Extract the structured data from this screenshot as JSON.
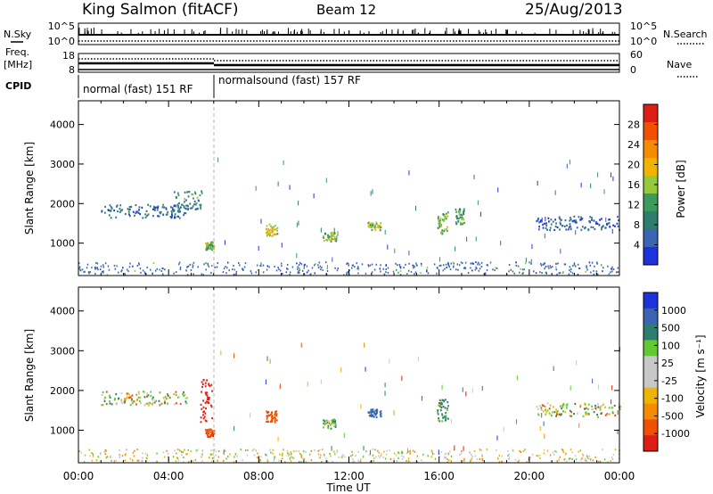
{
  "header": {
    "station": "King Salmon (fitACF)",
    "beam": "Beam 12",
    "date": "25/Aug/2013"
  },
  "sky_search": {
    "left_label": "N.Sky",
    "right_label": "N.Search",
    "left_ticks": [
      "10^5",
      "10^0"
    ],
    "right_ticks": [
      "10^5",
      "10^0"
    ]
  },
  "freq_nave": {
    "left_label_line1": "Freq.",
    "left_label_line2": "[MHz]",
    "right_label": "Nave",
    "left_ticks": [
      "18",
      "8"
    ],
    "right_ticks": [
      "60",
      "0"
    ]
  },
  "cpid": {
    "label": "CPID",
    "segments": [
      {
        "text": "normal (fast) 151 RF",
        "start_hour": 0
      },
      {
        "text": "normalsound (fast) 157 RF",
        "start_hour": 6
      }
    ]
  },
  "x_axis": {
    "label": "Time UT",
    "ticks": [
      "00:00",
      "04:00",
      "08:00",
      "12:00",
      "16:00",
      "20:00",
      "00:00"
    ],
    "range_hours": [
      0,
      24
    ]
  },
  "colors": {
    "power_scale": [
      "#1e32dc",
      "#3c64b4",
      "#2e7d6e",
      "#3c9a5a",
      "#96c83c",
      "#f0b400",
      "#f58c00",
      "#f05000",
      "#dc1e14"
    ],
    "velocity_scale": [
      "#dc1e14",
      "#f05000",
      "#f58c00",
      "#f0b400",
      "#c8c8c8",
      "#c8c8c8",
      "#64c832",
      "#2e7d6e",
      "#3c64b4",
      "#1e32dc"
    ]
  },
  "chart_data": [
    {
      "type": "heatmap",
      "title": "",
      "xlabel": "",
      "ylabel": "Slant Range [km]",
      "y_ticks": [
        "1000",
        "2000",
        "3000",
        "4000"
      ],
      "ylim": [
        180,
        4600
      ],
      "colorbar_label": "Power [dB]",
      "colorbar_ticks": [
        "4",
        "8",
        "12",
        "16",
        "20",
        "24",
        "28"
      ],
      "colorbar_range": [
        0,
        32
      ],
      "echo_regions": [
        {
          "t0": 1.0,
          "t1": 4.8,
          "r0": 1650,
          "r1": 2000,
          "level": 6
        },
        {
          "t0": 4.2,
          "t1": 5.5,
          "r0": 1850,
          "r1": 2350,
          "level": 10
        },
        {
          "t0": 5.6,
          "t1": 6.0,
          "r0": 850,
          "r1": 1050,
          "level": 14
        },
        {
          "t0": 8.3,
          "t1": 8.8,
          "r0": 1200,
          "r1": 1500,
          "level": 18
        },
        {
          "t0": 10.8,
          "t1": 11.4,
          "r0": 1050,
          "r1": 1300,
          "level": 14
        },
        {
          "t0": 12.8,
          "t1": 13.4,
          "r0": 1350,
          "r1": 1550,
          "level": 16
        },
        {
          "t0": 15.9,
          "t1": 16.4,
          "r0": 1250,
          "r1": 1800,
          "level": 14
        },
        {
          "t0": 16.7,
          "t1": 17.1,
          "r0": 1500,
          "r1": 1900,
          "level": 12
        },
        {
          "t0": 20.3,
          "t1": 24.0,
          "r0": 1350,
          "r1": 1700,
          "level": 5
        }
      ]
    },
    {
      "type": "heatmap",
      "title": "",
      "xlabel": "Time UT",
      "ylabel": "Slant Range [km]",
      "y_ticks": [
        "1000",
        "2000",
        "3000",
        "4000"
      ],
      "ylim": [
        180,
        4600
      ],
      "colorbar_label": "Velocity [m s⁻¹]",
      "colorbar_ticks": [
        "1000",
        "500",
        "100",
        "25",
        "-25",
        "-100",
        "-500",
        "-1000"
      ],
      "echo_regions": [
        {
          "t0": 1.0,
          "t1": 4.8,
          "r0": 1650,
          "r1": 2000,
          "velocity": 0
        },
        {
          "t0": 5.4,
          "t1": 5.9,
          "r0": 1200,
          "r1": 2300,
          "velocity": -800
        },
        {
          "t0": 5.6,
          "t1": 6.0,
          "r0": 850,
          "r1": 1050,
          "velocity": -400
        },
        {
          "t0": 8.3,
          "t1": 8.8,
          "r0": 1200,
          "r1": 1500,
          "velocity": -300
        },
        {
          "t0": 10.8,
          "t1": 11.4,
          "r0": 1050,
          "r1": 1300,
          "velocity": 80
        },
        {
          "t0": 12.8,
          "t1": 13.4,
          "r0": 1350,
          "r1": 1550,
          "velocity": 600
        },
        {
          "t0": 15.9,
          "t1": 16.4,
          "r0": 1250,
          "r1": 1800,
          "velocity": 200
        },
        {
          "t0": 20.3,
          "t1": 24.0,
          "r0": 1350,
          "r1": 1700,
          "velocity": 0
        }
      ]
    }
  ]
}
